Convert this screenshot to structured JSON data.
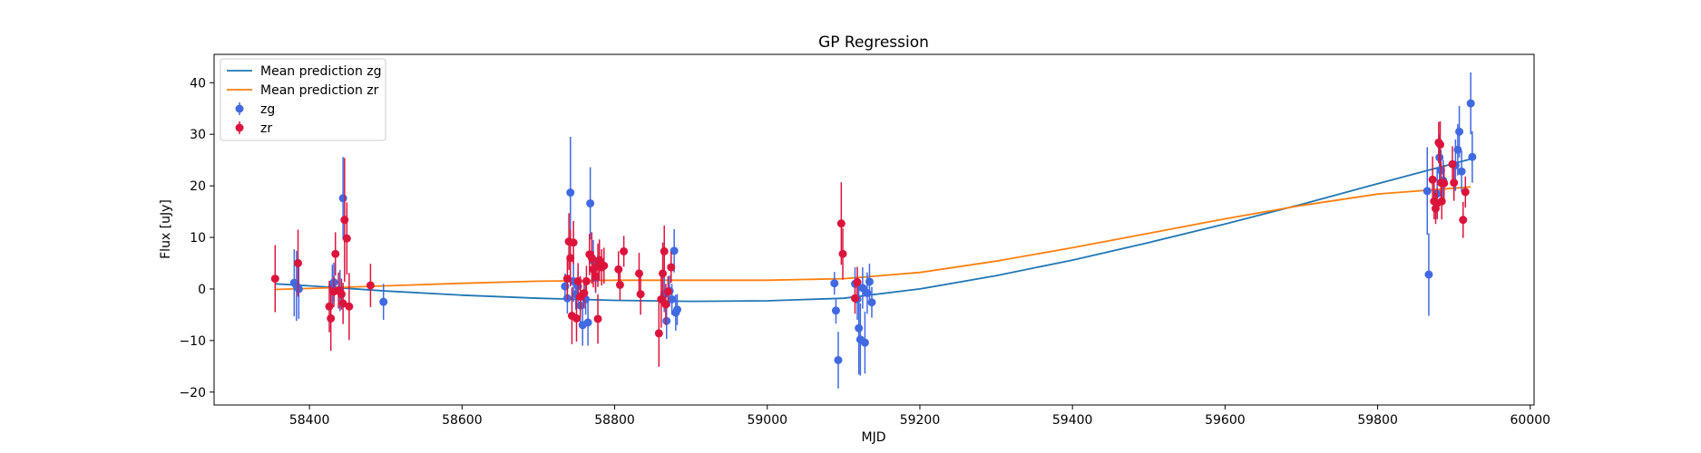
{
  "chart_data": {
    "type": "scatter",
    "title": "GP Regression",
    "xlabel": "MJD",
    "ylabel": "Flux [uJy]",
    "xlim": [
      58275,
      60005
    ],
    "ylim": [
      -22.5,
      45.5
    ],
    "xticks": [
      58400,
      58600,
      58800,
      59000,
      59200,
      59400,
      59600,
      59800,
      60000
    ],
    "yticks": [
      -20,
      -10,
      0,
      10,
      20,
      30,
      40
    ],
    "grid": false,
    "legend": {
      "position": "top-left",
      "entries": [
        "Mean prediction zg",
        "Mean prediction zr",
        "zg",
        "zr"
      ]
    },
    "colors": {
      "mean_zg": "#1f77b4",
      "mean_zr": "#ff7f0e",
      "zg": "#4169e1",
      "zr": "#dc143c"
    },
    "lines": [
      {
        "name": "Mean prediction zg",
        "x": [
          58355,
          58400,
          58500,
          58600,
          58700,
          58800,
          58900,
          59000,
          59100,
          59200,
          59300,
          59400,
          59500,
          59600,
          59700,
          59800,
          59922
        ],
        "y": [
          1.0,
          0.6,
          -0.4,
          -1.2,
          -1.8,
          -2.2,
          -2.4,
          -2.3,
          -1.8,
          0.0,
          2.6,
          5.6,
          9.0,
          12.6,
          16.4,
          20.4,
          25.2
        ]
      },
      {
        "name": "Mean prediction zr",
        "x": [
          58355,
          58400,
          58500,
          58600,
          58700,
          58800,
          58900,
          59000,
          59100,
          59200,
          59300,
          59400,
          59500,
          59600,
          59700,
          59800,
          59922
        ],
        "y": [
          -0.1,
          0.1,
          0.6,
          1.1,
          1.5,
          1.7,
          1.7,
          1.7,
          2.0,
          3.2,
          5.4,
          8.0,
          10.8,
          13.6,
          16.2,
          18.4,
          19.8
        ]
      }
    ],
    "series": [
      {
        "name": "zg",
        "points": [
          [
            58380,
            1.2,
            6.5
          ],
          [
            58383,
            0.6,
            6.8
          ],
          [
            58386,
            0.0,
            5.8
          ],
          [
            58430,
            0.5,
            4.2
          ],
          [
            58432,
            1.3,
            3.8
          ],
          [
            58440,
            -0.3,
            4.0
          ],
          [
            58444,
            17.6,
            8.0
          ],
          [
            58497,
            -2.5,
            3.5
          ],
          [
            58735,
            0.5,
            2.5
          ],
          [
            58738,
            -1.8,
            3.0
          ],
          [
            58742,
            18.7,
            10.8
          ],
          [
            58746,
            1.5,
            4.0
          ],
          [
            58749,
            -1.0,
            3.0
          ],
          [
            58752,
            0.5,
            3.0
          ],
          [
            58755,
            -3.2,
            3.5
          ],
          [
            58758,
            -7.0,
            4.0
          ],
          [
            58762,
            -2.0,
            3.0
          ],
          [
            58765,
            -6.5,
            4.5
          ],
          [
            58768,
            16.6,
            7.0
          ],
          [
            58772,
            5.5,
            4.0
          ],
          [
            58775,
            2.2,
            3.0
          ],
          [
            58865,
            -1.0,
            3.5
          ],
          [
            58868,
            -6.2,
            3.5
          ],
          [
            58872,
            -0.4,
            3.0
          ],
          [
            58875,
            -2.0,
            3.0
          ],
          [
            58878,
            7.4,
            4.2
          ],
          [
            58880,
            -4.6,
            3.5
          ],
          [
            58882,
            -4.0,
            3.0
          ],
          [
            59088,
            1.1,
            2.2
          ],
          [
            59090,
            -4.2,
            2.5
          ],
          [
            59093,
            -13.8,
            5.5
          ],
          [
            59115,
            1.0,
            3.2
          ],
          [
            59118,
            -2.0,
            4.0
          ],
          [
            59120,
            -7.6,
            9.0
          ],
          [
            59122,
            -9.8,
            7.0
          ],
          [
            59125,
            0.2,
            4.0
          ],
          [
            59128,
            -10.4,
            6.0
          ],
          [
            59131,
            -0.8,
            4.0
          ],
          [
            59134,
            1.4,
            3.5
          ],
          [
            59137,
            -2.6,
            3.0
          ],
          [
            59865,
            19.0,
            8.5
          ],
          [
            59867,
            2.8,
            8.0
          ],
          [
            59878,
            18.5,
            5.0
          ],
          [
            59881,
            25.5,
            4.5
          ],
          [
            59883,
            23.0,
            4.0
          ],
          [
            59886,
            21.0,
            4.0
          ],
          [
            59902,
            24.0,
            5.0
          ],
          [
            59905,
            27.0,
            5.0
          ],
          [
            59907,
            30.5,
            5.0
          ],
          [
            59910,
            22.8,
            4.0
          ],
          [
            59922,
            36.0,
            6.0
          ],
          [
            59924,
            25.6,
            5.0
          ]
        ]
      },
      {
        "name": "zr",
        "points": [
          [
            58355,
            2.0,
            6.5
          ],
          [
            58385,
            5.0,
            6.5
          ],
          [
            58426,
            -3.4,
            5.0
          ],
          [
            58428,
            -5.7,
            6.3
          ],
          [
            58432,
            -0.5,
            3.0
          ],
          [
            58434,
            6.8,
            4.2
          ],
          [
            58438,
            -0.3,
            3.5
          ],
          [
            58442,
            -1.0,
            3.0
          ],
          [
            58444,
            -2.8,
            4.0
          ],
          [
            58446,
            13.4,
            12.0
          ],
          [
            58449,
            9.8,
            7.0
          ],
          [
            58452,
            -3.4,
            6.5
          ],
          [
            58480,
            0.7,
            4.2
          ],
          [
            58738,
            2.0,
            4.0
          ],
          [
            58740,
            9.2,
            5.5
          ],
          [
            58742,
            6.0,
            5.5
          ],
          [
            58744,
            -5.2,
            5.5
          ],
          [
            58746,
            9.0,
            4.2
          ],
          [
            58750,
            -5.7,
            4.5
          ],
          [
            58752,
            1.5,
            3.5
          ],
          [
            58755,
            -1.5,
            4.0
          ],
          [
            58760,
            -0.8,
            3.0
          ],
          [
            58763,
            1.5,
            3.0
          ],
          [
            58767,
            6.7,
            4.0
          ],
          [
            58770,
            6.0,
            5.0
          ],
          [
            58772,
            3.8,
            3.5
          ],
          [
            58775,
            2.5,
            3.0
          ],
          [
            58778,
            4.6,
            4.2
          ],
          [
            58778,
            -5.8,
            4.8
          ],
          [
            58780,
            5.6,
            4.0
          ],
          [
            58783,
            4.2,
            3.5
          ],
          [
            58786,
            4.5,
            3.5
          ],
          [
            58805,
            3.8,
            3.5
          ],
          [
            58807,
            0.8,
            3.0
          ],
          [
            58812,
            7.3,
            3.0
          ],
          [
            58832,
            3.0,
            4.0
          ],
          [
            58834,
            -1.0,
            4.0
          ],
          [
            58858,
            -8.6,
            6.5
          ],
          [
            58861,
            -2.0,
            5.5
          ],
          [
            58863,
            3.0,
            6.0
          ],
          [
            58865,
            7.3,
            5.0
          ],
          [
            58867,
            -3.0,
            4.0
          ],
          [
            58870,
            -0.5,
            3.0
          ],
          [
            58874,
            4.2,
            3.0
          ],
          [
            59097,
            12.7,
            8.0
          ],
          [
            59099,
            6.8,
            5.0
          ],
          [
            59115,
            -1.8,
            3.0
          ],
          [
            59118,
            1.3,
            3.0
          ],
          [
            59872,
            21.2,
            4.5
          ],
          [
            59874,
            17.0,
            3.5
          ],
          [
            59876,
            15.6,
            3.0
          ],
          [
            59878,
            16.6,
            3.0
          ],
          [
            59880,
            28.4,
            4.0
          ],
          [
            59882,
            28.0,
            4.5
          ],
          [
            59883,
            20.6,
            4.0
          ],
          [
            59884,
            17.0,
            3.5
          ],
          [
            59887,
            20.5,
            3.5
          ],
          [
            59898,
            24.2,
            3.5
          ],
          [
            59900,
            20.6,
            3.5
          ],
          [
            59912,
            13.4,
            3.5
          ],
          [
            59915,
            18.8,
            3.0
          ]
        ]
      }
    ]
  }
}
